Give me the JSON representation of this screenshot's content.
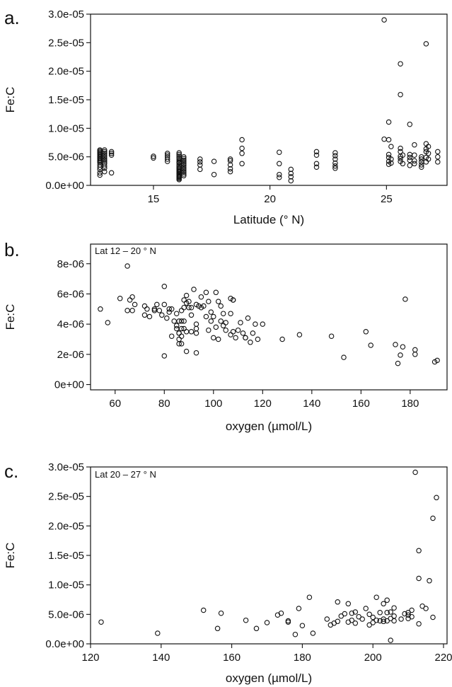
{
  "chart_data": [
    {
      "type": "scatter",
      "panel_label": "a.",
      "inset_label": "",
      "xlabel": "Latitude (° N)",
      "ylabel": "Fe:C",
      "xlim": [
        12.3,
        27.6
      ],
      "ylim": [
        0,
        3e-05
      ],
      "xticks": [
        15,
        20,
        25
      ],
      "xtick_labels": [
        "15",
        "20",
        "25"
      ],
      "yticks": [
        0,
        5e-06,
        1e-05,
        1.5e-05,
        2e-05,
        2.5e-05,
        3e-05
      ],
      "ytick_labels": [
        "0.0e+00",
        "5.0e-06",
        "1.0e-05",
        "1.5e-05",
        "2.0e-05",
        "2.5e-05",
        "3.0e-05"
      ],
      "grid": false,
      "x": [
        12.7,
        12.7,
        12.7,
        12.7,
        12.7,
        12.7,
        12.7,
        12.7,
        12.7,
        12.7,
        12.7,
        12.7,
        12.7,
        12.7,
        12.7,
        12.7,
        12.7,
        12.9,
        12.9,
        12.9,
        12.9,
        12.9,
        12.9,
        12.9,
        12.9,
        12.9,
        12.9,
        12.9,
        12.9,
        13.2,
        13.2,
        13.2,
        13.2,
        15.0,
        15.0,
        15.6,
        15.6,
        15.6,
        15.6,
        15.6,
        16.1,
        16.1,
        16.1,
        16.1,
        16.1,
        16.1,
        16.1,
        16.1,
        16.1,
        16.1,
        16.1,
        16.1,
        16.1,
        16.1,
        16.1,
        16.1,
        16.1,
        16.1,
        16.1,
        16.1,
        16.1,
        16.1,
        16.1,
        16.1,
        16.1,
        16.3,
        16.3,
        16.3,
        16.3,
        16.3,
        16.3,
        16.3,
        16.3,
        16.3,
        16.3,
        16.3,
        16.3,
        17.0,
        17.0,
        17.0,
        17.0,
        17.6,
        17.6,
        18.3,
        18.3,
        18.3,
        18.3,
        18.3,
        18.8,
        18.8,
        18.8,
        18.8,
        20.4,
        20.4,
        20.4,
        20.4,
        20.9,
        20.9,
        20.9,
        20.9,
        22.0,
        22.0,
        22.0,
        22.0,
        22.8,
        22.8,
        22.8,
        22.8,
        22.8,
        22.8,
        24.9,
        24.9,
        25.1,
        25.1,
        25.1,
        25.1,
        25.1,
        25.1,
        25.2,
        25.2,
        25.2,
        25.6,
        25.6,
        25.6,
        25.6,
        25.6,
        25.6,
        25.6,
        25.7,
        25.7,
        26.0,
        26.0,
        26.0,
        26.0,
        26.0,
        26.2,
        26.2,
        26.2,
        26.2,
        26.5,
        26.5,
        26.5,
        26.5,
        26.5,
        26.7,
        26.7,
        26.7,
        26.7,
        26.7,
        26.7,
        26.8,
        26.8,
        26.8,
        27.2,
        27.2,
        27.2
      ],
      "y": [
        6.2e-06,
        6e-06,
        5.8e-06,
        5.6e-06,
        5.4e-06,
        5.2e-06,
        5e-06,
        4.8e-06,
        4.6e-06,
        4.4e-06,
        4.2e-06,
        4e-06,
        3.6e-06,
        3.2e-06,
        2.8e-06,
        2.2e-06,
        1.8e-06,
        6.2e-06,
        5.9e-06,
        5.6e-06,
        5.3e-06,
        5e-06,
        4.7e-06,
        4.4e-06,
        4.1e-06,
        3.8e-06,
        3.4e-06,
        3e-06,
        2.4e-06,
        5.9e-06,
        5.6e-06,
        5.3e-06,
        2.2e-06,
        5.1e-06,
        4.8e-06,
        5.6e-06,
        5.3e-06,
        5e-06,
        4.6e-06,
        4.2e-06,
        5.7e-06,
        5.4e-06,
        5.1e-06,
        4.8e-06,
        4.5e-06,
        4.2e-06,
        3.9e-06,
        3.6e-06,
        3.3e-06,
        3e-06,
        2.8e-06,
        2.6e-06,
        2.4e-06,
        2.2e-06,
        2e-06,
        1.8e-06,
        1.6e-06,
        1.4e-06,
        1.2e-06,
        1e-06,
        4e-06,
        3e-06,
        2.5e-06,
        2e-06,
        1.5e-06,
        5e-06,
        4.7e-06,
        4.4e-06,
        4.1e-06,
        3.8e-06,
        3.5e-06,
        3.2e-06,
        2.9e-06,
        2.6e-06,
        2.3e-06,
        2e-06,
        1.7e-06,
        4.6e-06,
        4.1e-06,
        3.6e-06,
        2.8e-06,
        4.2e-06,
        1.9e-06,
        4.6e-06,
        4.3e-06,
        3.6e-06,
        2.9e-06,
        2.4e-06,
        8e-06,
        6.5e-06,
        5.6e-06,
        3.8e-06,
        5.8e-06,
        3.8e-06,
        1.9e-06,
        1.4e-06,
        2.8e-06,
        2.1e-06,
        1.5e-06,
        8e-07,
        5.9e-06,
        5.3e-06,
        3.8e-06,
        3.2e-06,
        5.7e-06,
        5.2e-06,
        4.6e-06,
        3.9e-06,
        3.4e-06,
        3e-06,
        2.9e-05,
        8.1e-06,
        1.11e-05,
        8e-06,
        5.4e-06,
        4.9e-06,
        4.2e-06,
        3.7e-06,
        6.8e-06,
        4.6e-06,
        3.9e-06,
        2.13e-05,
        1.59e-05,
        6.5e-06,
        5.9e-06,
        5.1e-06,
        4.7e-06,
        4.2e-06,
        3.8e-06,
        5.3e-06,
        1.07e-05,
        5.4e-06,
        4.9e-06,
        4.4e-06,
        3.5e-06,
        7.1e-06,
        5.3e-06,
        4.3e-06,
        3.8e-06,
        5e-06,
        4.6e-06,
        4.1e-06,
        3.6e-06,
        3.2e-06,
        2.48e-05,
        7.3e-06,
        6.4e-06,
        5.9e-06,
        4.9e-06,
        4.1e-06,
        6.8e-06,
        5.6e-06,
        4.6e-06,
        5.9e-06,
        5e-06,
        4.1e-06
      ]
    },
    {
      "type": "scatter",
      "panel_label": "b.",
      "inset_label": "Lat 12 – 20 ° N",
      "xlabel": "oxygen (µmol/L)",
      "ylabel": "Fe:C",
      "xlim": [
        50,
        195
      ],
      "ylim": [
        -3.5e-07,
        9.3e-06
      ],
      "xticks": [
        60,
        80,
        100,
        120,
        140,
        160,
        180
      ],
      "xtick_labels": [
        "60",
        "80",
        "100",
        "120",
        "140",
        "160",
        "180"
      ],
      "yticks": [
        0,
        2e-06,
        4e-06,
        6e-06,
        8e-06
      ],
      "ytick_labels": [
        "0e+00",
        "2e-06",
        "4e-06",
        "6e-06",
        "8e-06"
      ],
      "grid": false,
      "x": [
        54,
        57,
        62,
        65,
        65,
        66,
        67,
        67,
        68,
        72,
        72,
        73,
        74,
        76,
        76,
        77,
        78,
        79,
        80,
        80,
        80,
        81,
        82,
        82,
        83,
        83,
        84,
        85,
        85,
        85,
        86,
        86,
        86,
        86,
        86,
        87,
        87,
        87,
        87,
        87,
        88,
        88,
        88,
        88,
        89,
        89,
        89,
        89,
        90,
        90,
        91,
        91,
        91,
        92,
        93,
        93,
        93,
        93,
        93,
        94,
        95,
        95,
        96,
        97,
        97,
        98,
        98,
        99,
        99,
        100,
        100,
        101,
        101,
        102,
        102,
        103,
        103,
        104,
        104,
        105,
        105,
        107,
        107,
        107,
        108,
        108,
        108,
        109,
        110,
        111,
        112,
        113,
        113,
        114,
        115,
        116,
        117,
        118,
        120,
        128,
        135,
        148,
        153,
        162,
        164,
        174,
        175,
        176,
        177,
        178,
        182,
        182,
        190,
        191
      ],
      "y": [
        5e-06,
        4.1e-06,
        5.7e-06,
        7.85e-06,
        4.9e-06,
        5.6e-06,
        5.8e-06,
        4.9e-06,
        5.3e-06,
        5.2e-06,
        4.6e-06,
        5e-06,
        4.5e-06,
        4.9e-06,
        5e-06,
        5.3e-06,
        4.9e-06,
        4.6e-06,
        6.5e-06,
        5.3e-06,
        1.9e-06,
        4.4e-06,
        5e-06,
        4.8e-06,
        5e-06,
        3.2e-06,
        4.2e-06,
        3.9e-06,
        4.7e-06,
        3.7e-06,
        4.2e-06,
        3.4e-06,
        3e-06,
        2.7e-06,
        3.4e-06,
        4.9e-06,
        4.2e-06,
        3.7e-06,
        3.2e-06,
        2.7e-06,
        5.6e-06,
        5.1e-06,
        4.2e-06,
        3.7e-06,
        5.4e-06,
        5.9e-06,
        3.5e-06,
        2.2e-06,
        5.5e-06,
        5.1e-06,
        4.6e-06,
        3.5e-06,
        5.1e-06,
        6.3e-06,
        4e-06,
        3.7e-06,
        3.4e-06,
        2.1e-06,
        5.3e-06,
        5.2e-06,
        5.8e-06,
        5.1e-06,
        5.2e-06,
        6.1e-06,
        4.5e-06,
        5.5e-06,
        3.6e-06,
        4.8e-06,
        4.2e-06,
        4.5e-06,
        3.1e-06,
        6.1e-06,
        3.8e-06,
        5.5e-06,
        3e-06,
        5.2e-06,
        4.2e-06,
        4.7e-06,
        3.9e-06,
        4.1e-06,
        3.6e-06,
        5.7e-06,
        4.7e-06,
        3.3e-06,
        5.6e-06,
        5.6e-06,
        3.5e-06,
        3.1e-06,
        3.6e-06,
        4.1e-06,
        3.4e-06,
        3.1e-06,
        3.1e-06,
        4.4e-06,
        2.8e-06,
        3.4e-06,
        4e-06,
        3e-06,
        4e-06,
        3e-06,
        3.3e-06,
        3.2e-06,
        1.8e-06,
        3.5e-06,
        2.6e-06,
        2.65e-06,
        1.4e-06,
        1.95e-06,
        2.5e-06,
        5.65e-06,
        2e-06,
        2.3e-06,
        1.5e-06,
        1.6e-06
      ]
    },
    {
      "type": "scatter",
      "panel_label": "c.",
      "inset_label": "Lat 20 – 27 ° N",
      "xlabel": "oxygen (µmol/L)",
      "ylabel": "Fe:C",
      "xlim": [
        120,
        221
      ],
      "ylim": [
        0,
        3e-05
      ],
      "xticks": [
        120,
        140,
        160,
        180,
        200,
        220
      ],
      "xtick_labels": [
        "120",
        "140",
        "160",
        "180",
        "200",
        "220"
      ],
      "yticks": [
        0,
        5e-06,
        1e-05,
        1.5e-05,
        2e-05,
        2.5e-05,
        3e-05
      ],
      "ytick_labels": [
        "0.0e+00",
        "5.0e-06",
        "1.0e-05",
        "1.5e-05",
        "2.0e-05",
        "2.5e-05",
        "3.0e-05"
      ],
      "grid": false,
      "x": [
        123,
        139,
        152,
        156,
        157,
        164,
        167,
        170,
        173,
        174,
        176,
        176,
        178,
        179,
        180,
        182,
        183,
        187,
        188,
        189,
        190,
        190,
        191,
        192,
        193,
        193,
        194,
        194,
        195,
        195,
        196,
        197,
        198,
        199,
        199,
        200,
        200,
        201,
        201,
        202,
        202,
        203,
        203,
        203,
        204,
        204,
        204,
        205,
        205,
        205,
        206,
        206,
        206,
        208,
        209,
        210,
        210,
        210,
        211,
        211,
        212,
        213,
        213,
        213,
        214,
        215,
        216,
        217,
        217,
        218
      ],
      "y": [
        3.7e-06,
        1.8e-06,
        5.7e-06,
        2.6e-06,
        5.2e-06,
        4e-06,
        2.6e-06,
        3.6e-06,
        4.9e-06,
        5.2e-06,
        3.9e-06,
        3.7e-06,
        1.6e-06,
        6e-06,
        3.1e-06,
        7.9e-06,
        1.8e-06,
        4.2e-06,
        3.2e-06,
        3.5e-06,
        3.8e-06,
        7.1e-06,
        4.7e-06,
        5.1e-06,
        3.7e-06,
        6.8e-06,
        4e-06,
        5.2e-06,
        3.5e-06,
        5.4e-06,
        4.6e-06,
        4.2e-06,
        6e-06,
        3.2e-06,
        5e-06,
        3.6e-06,
        4.5e-06,
        4e-06,
        7.9e-06,
        3.9e-06,
        5.3e-06,
        6.8e-06,
        4.2e-06,
        3.8e-06,
        3.9e-06,
        7.4e-06,
        5.3e-06,
        6e-07,
        4.3e-06,
        5.4e-06,
        6.1e-06,
        3.9e-06,
        4.7e-06,
        4.2e-06,
        5.1e-06,
        5.3e-06,
        4.9e-06,
        4.3e-06,
        5.7e-06,
        4.6e-06,
        2.91e-05,
        1.11e-05,
        1.58e-05,
        3.4e-06,
        6.4e-06,
        6e-06,
        1.07e-05,
        2.13e-05,
        4.5e-06,
        2.48e-05
      ]
    }
  ]
}
